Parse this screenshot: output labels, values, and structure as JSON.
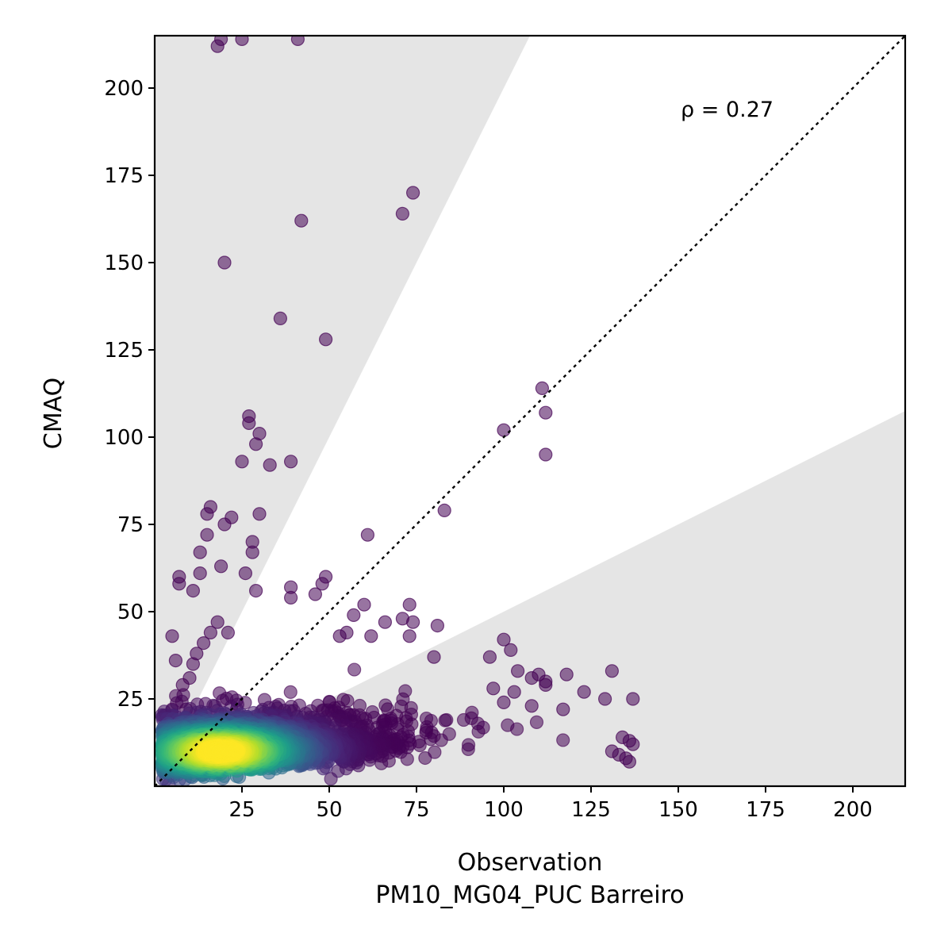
{
  "chart_data": {
    "type": "scatter",
    "xlabel": "Observation",
    "xlabel2": "PM10_MG04_PUC Barreiro",
    "ylabel": "CMAQ",
    "annotation": "ρ = 0.27",
    "xlim": [
      0,
      215
    ],
    "ylim": [
      0,
      215
    ],
    "x_ticks": [
      25,
      50,
      75,
      100,
      125,
      150,
      175,
      200
    ],
    "y_ticks": [
      25,
      50,
      75,
      100,
      125,
      150,
      175,
      200
    ],
    "reference_line": "1:1",
    "bands": [
      {
        "description": "factor-of-2 exceedance region above",
        "slope": 2,
        "fill": "#e5e5e5"
      },
      {
        "description": "factor-of-2 exceedance region below",
        "slope": 0.5,
        "fill": "#e5e5e5"
      }
    ],
    "colormap": "viridis",
    "point_alpha": 0.55,
    "outlier_points": [
      [
        18,
        212
      ],
      [
        19,
        214
      ],
      [
        25,
        214
      ],
      [
        41,
        214
      ],
      [
        74,
        170
      ],
      [
        71,
        164
      ],
      [
        42,
        162
      ],
      [
        20,
        150
      ],
      [
        36,
        134
      ],
      [
        49,
        128
      ],
      [
        111,
        114
      ],
      [
        112,
        107
      ],
      [
        100,
        102
      ],
      [
        112,
        95
      ],
      [
        27,
        106
      ],
      [
        27,
        104
      ],
      [
        30,
        101
      ],
      [
        29,
        98
      ],
      [
        25,
        93
      ],
      [
        33,
        92
      ],
      [
        39,
        93
      ],
      [
        16,
        80
      ],
      [
        15,
        78
      ],
      [
        22,
        77
      ],
      [
        30,
        78
      ],
      [
        20,
        75
      ],
      [
        83,
        79
      ],
      [
        61,
        72
      ],
      [
        15,
        72
      ],
      [
        28,
        70
      ],
      [
        28,
        67
      ],
      [
        13,
        67
      ],
      [
        13,
        61
      ],
      [
        19,
        63
      ],
      [
        26,
        61
      ],
      [
        7,
        60
      ],
      [
        7,
        58
      ],
      [
        11,
        56
      ],
      [
        29,
        56
      ],
      [
        39,
        57
      ],
      [
        49,
        60
      ],
      [
        48,
        58
      ],
      [
        46,
        55
      ],
      [
        39,
        54
      ],
      [
        60,
        52
      ],
      [
        73,
        52
      ],
      [
        57,
        49
      ],
      [
        71,
        48
      ],
      [
        74,
        47
      ],
      [
        81,
        46
      ],
      [
        66,
        47
      ],
      [
        73,
        43
      ],
      [
        100,
        42
      ],
      [
        55,
        44
      ],
      [
        62,
        43
      ],
      [
        53,
        43
      ],
      [
        102,
        39
      ],
      [
        96,
        37
      ],
      [
        80,
        37
      ],
      [
        104,
        33
      ],
      [
        110,
        32
      ],
      [
        118,
        32
      ],
      [
        131,
        33
      ],
      [
        108,
        31
      ],
      [
        112,
        30
      ],
      [
        103,
        27
      ],
      [
        123,
        27
      ],
      [
        129,
        25
      ],
      [
        137,
        25
      ],
      [
        112,
        29
      ],
      [
        97,
        28
      ],
      [
        117,
        22
      ],
      [
        108,
        23
      ],
      [
        100,
        24
      ],
      [
        134,
        14
      ],
      [
        136,
        13
      ],
      [
        137,
        12
      ],
      [
        131,
        10
      ],
      [
        133,
        9
      ],
      [
        135,
        8
      ],
      [
        136,
        7
      ],
      [
        5,
        43
      ],
      [
        6,
        36
      ],
      [
        11,
        35
      ],
      [
        12,
        38
      ],
      [
        16,
        44
      ],
      [
        18,
        47
      ],
      [
        21,
        44
      ],
      [
        14,
        41
      ],
      [
        9,
        22
      ],
      [
        5,
        22
      ],
      [
        8,
        29
      ],
      [
        10,
        31
      ]
    ],
    "dense_cluster": {
      "peak": [
        19,
        10
      ],
      "x_range": [
        0,
        137
      ],
      "y_range": [
        0,
        35
      ]
    }
  },
  "colors": {
    "band": "#e5e5e5",
    "outlier": "#440154",
    "reference_line": "#000000"
  }
}
